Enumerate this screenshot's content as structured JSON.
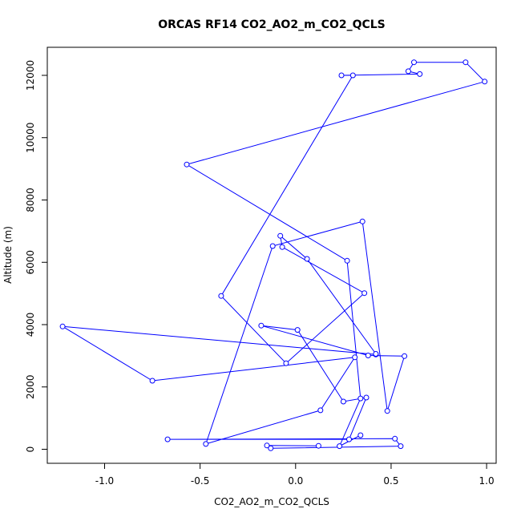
{
  "chart_data": {
    "type": "line",
    "title": "ORCAS RF14 CO2_AO2_m_CO2_QCLS",
    "xlabel": "CO2_AO2_m_CO2_QCLS",
    "ylabel": "Altitude (m)",
    "xlim": [
      -1.3,
      1.05
    ],
    "ylim": [
      -450,
      12900
    ],
    "xticks": [
      -1.0,
      -0.5,
      0.0,
      0.5,
      1.0
    ],
    "xtick_labels": [
      "-1.0",
      "-0.5",
      "0.0",
      "0.5",
      "1.0"
    ],
    "yticks": [
      0,
      2000,
      4000,
      6000,
      8000,
      10000,
      12000
    ],
    "ytick_labels": [
      "0",
      "2000",
      "4000",
      "6000",
      "8000",
      "10000",
      "12000"
    ],
    "grid": false,
    "color": "#0000ff",
    "series": [
      {
        "x": [
          0.12,
          -0.15,
          -0.13,
          0.55,
          0.52,
          -0.67,
          0.28,
          0.37,
          0.25,
          0.01,
          -0.18,
          0.38,
          0.57,
          0.48,
          0.35,
          -0.12,
          -0.47,
          0.13,
          0.31,
          -0.75,
          -1.22,
          0.42,
          0.42,
          0.06,
          -0.08,
          -0.07,
          0.36,
          -0.05,
          -0.39,
          0.3,
          0.24,
          0.65,
          0.59,
          0.62,
          0.89,
          0.99,
          -0.57,
          0.27,
          0.34,
          0.23,
          0.34
        ],
        "y": [
          110,
          120,
          30,
          100,
          340,
          320,
          320,
          1660,
          1530,
          3830,
          3970,
          3010,
          2990,
          1230,
          7310,
          6520,
          170,
          1250,
          2950,
          2200,
          3940,
          3040,
          3060,
          6110,
          6850,
          6490,
          5010,
          2760,
          4920,
          12000,
          12000,
          12040,
          12130,
          12420,
          12420,
          11800,
          9140,
          6050,
          1630,
          100,
          450
        ]
      }
    ]
  }
}
